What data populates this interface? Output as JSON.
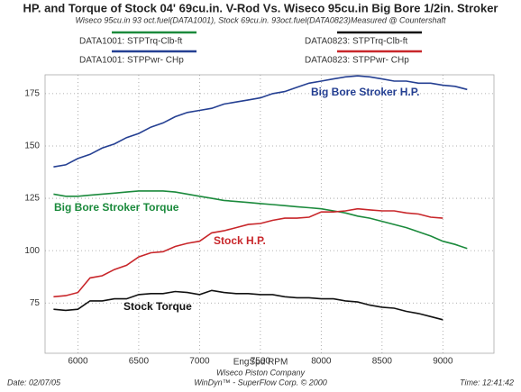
{
  "chart_data": {
    "type": "line",
    "title": "HP. and Torque of Stock 04' 69cu.in. V-Rod Vs. Wiseco 95cu.in Big Bore 1/2in. Stroker",
    "subtitle": "Wiseco 95cu.in 93 oct.fuel(DATA1001), Stock 69cu.in. 93oct.fuel(DATA0823)Measured @ Countershaft",
    "x_label": "EngSpd  RPM",
    "x": [
      5800,
      5900,
      6000,
      6100,
      6200,
      6300,
      6400,
      6500,
      6600,
      6700,
      6800,
      6900,
      7000,
      7100,
      7200,
      7300,
      7400,
      7500,
      7600,
      7700,
      7800,
      7900,
      8000,
      8100,
      8200,
      8300,
      8400,
      8500,
      8600,
      8700,
      8800,
      8900,
      9000,
      9100,
      9200
    ],
    "series": [
      {
        "name": "DATA1001: STPTrq-Clb-ft",
        "color": "#1b8a3c",
        "values": [
          127,
          126,
          126,
          126.5,
          127,
          127.5,
          128,
          128.5,
          128.5,
          128.5,
          128,
          127,
          126,
          125,
          124,
          123.5,
          123,
          122.5,
          122,
          121.5,
          121,
          120.5,
          120,
          119,
          118,
          116.5,
          115.5,
          114,
          112.5,
          111,
          109,
          107,
          104.5,
          103,
          101
        ]
      },
      {
        "name": "DATA1001: STPPwr- CHp",
        "color": "#243f92",
        "values": [
          140,
          141,
          144,
          146,
          149,
          151,
          154,
          156,
          159,
          161,
          164,
          166,
          167,
          168,
          170,
          171,
          172,
          173,
          175,
          176,
          178,
          180,
          181,
          182,
          183,
          183.5,
          183,
          182,
          181,
          181,
          180,
          180,
          179,
          178.5,
          177
        ]
      },
      {
        "name": "DATA0823: STPTrq-Clb-ft",
        "color": "#111111",
        "values": [
          72,
          71.5,
          72,
          76,
          76,
          77,
          77,
          79,
          79.5,
          79.5,
          80.5,
          80,
          79,
          81,
          80,
          79.5,
          79.5,
          79,
          79,
          78,
          77.5,
          77.5,
          77,
          77,
          76,
          75.5,
          74,
          73,
          72.5,
          71,
          70,
          68.5,
          67,
          null,
          null
        ]
      },
      {
        "name": "DATA0823: STPPwr- CHp",
        "color": "#c8262a",
        "values": [
          78,
          78.5,
          80,
          87,
          88,
          91,
          93,
          97,
          99,
          99.5,
          102,
          103.5,
          104.5,
          108.5,
          109.5,
          111,
          112.5,
          113,
          114.5,
          115.5,
          115.5,
          116,
          118.5,
          118.5,
          119,
          120,
          119.5,
          119,
          119,
          118,
          117.5,
          116,
          115.5,
          null,
          null
        ]
      }
    ],
    "annotations": [
      {
        "text": "Big Bore Stroker H.P.",
        "color": "#243f92"
      },
      {
        "text": "Big Bore Stroker Torque",
        "color": "#1b8a3c"
      },
      {
        "text": "Stock H.P.",
        "color": "#c8262a"
      },
      {
        "text": "Stock Torque",
        "color": "#111111"
      }
    ],
    "xlim": [
      5730,
      9420
    ],
    "ylim": [
      51,
      184
    ],
    "xticks": [
      6000,
      6500,
      7000,
      7500,
      8000,
      8500,
      9000
    ],
    "yticks": [
      75,
      100,
      125,
      150,
      175
    ],
    "grid": true,
    "footer": {
      "date": "Date: 02/07/05",
      "company": "Wiseco Piston Company",
      "software": "WinDyn™ - SuperFlow Corp. © 2000",
      "time": "Time: 12:41:42"
    }
  }
}
